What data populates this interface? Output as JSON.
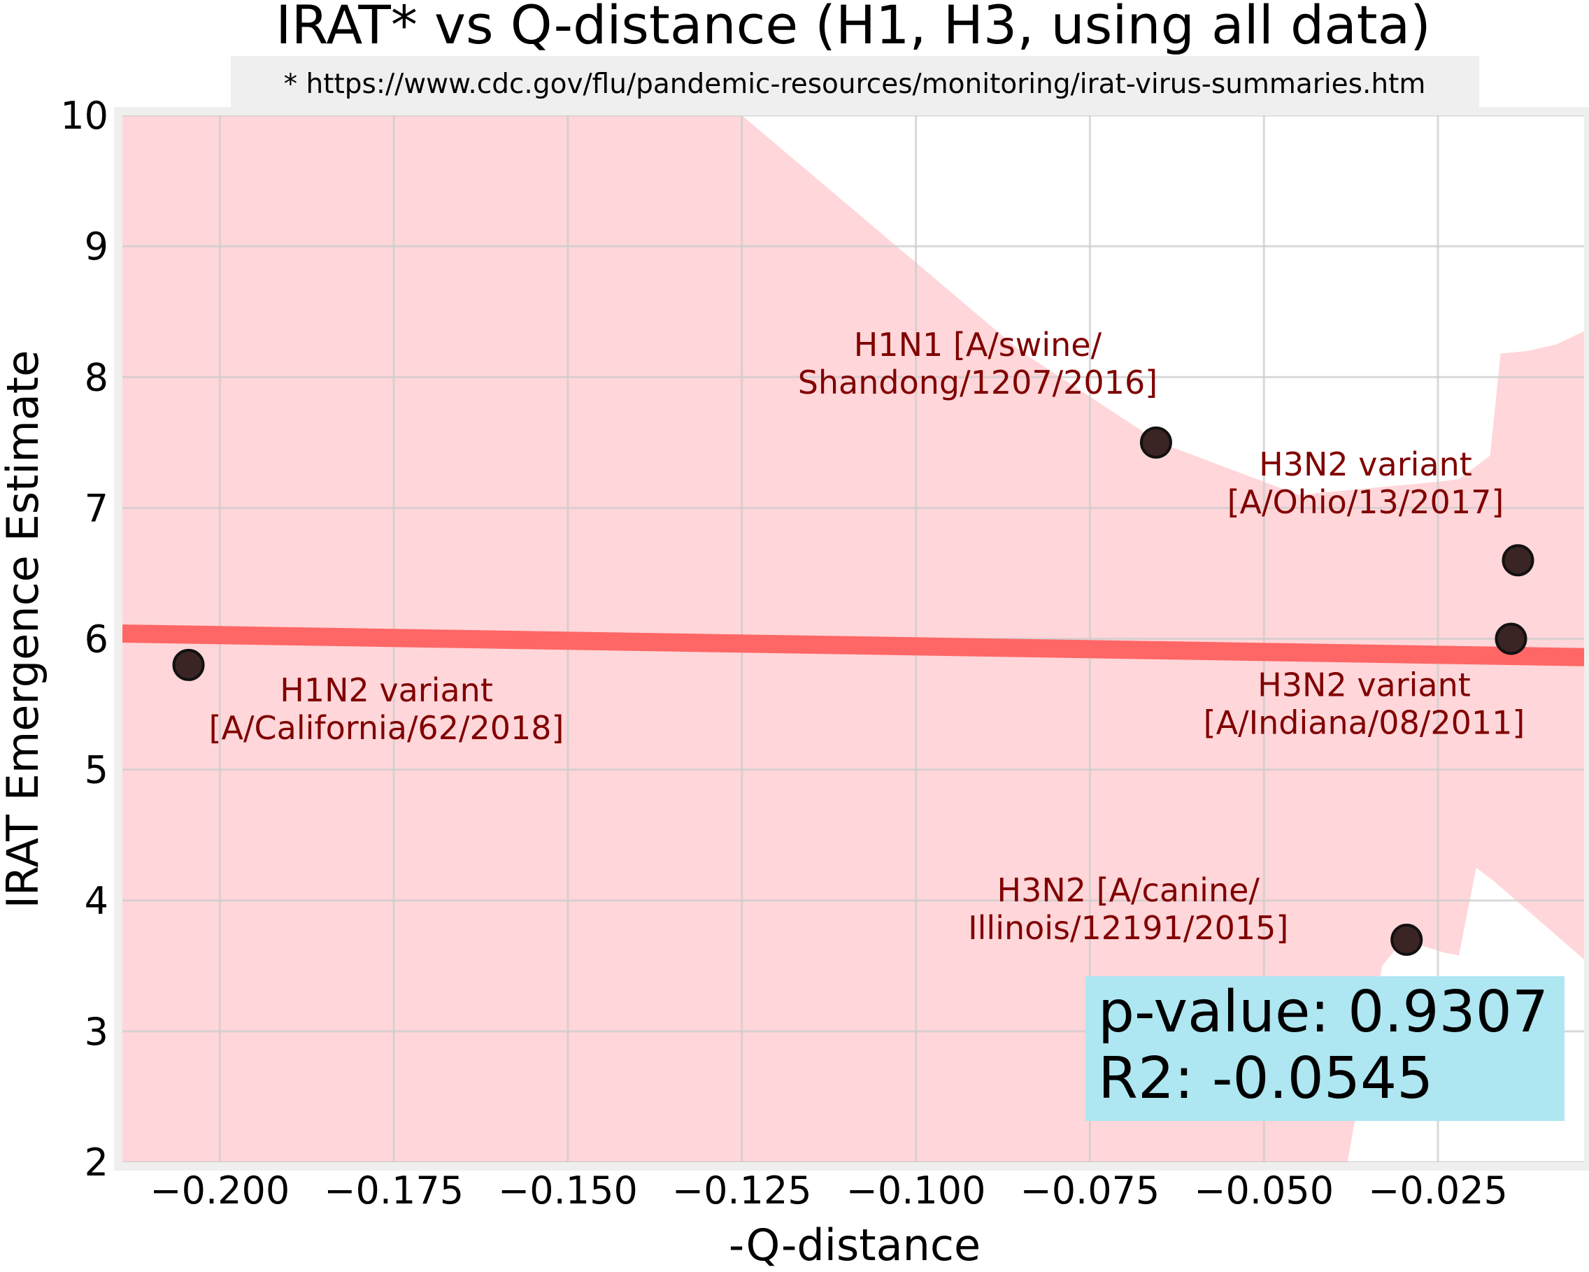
{
  "chart_data": {
    "type": "scatter",
    "title": "IRAT* vs Q-distance (H1, H3, using all data)",
    "subtitle": "* https://www.cdc.gov/flu/pandemic-resources/monitoring/irat-virus-summaries.htm",
    "xlabel": "-Q-distance",
    "ylabel": "IRAT Emergence Estimate",
    "xlim": [
      -0.214,
      -0.004
    ],
    "ylim": [
      2,
      10
    ],
    "xticks": [
      -0.2,
      -0.175,
      -0.15,
      -0.125,
      -0.1,
      -0.075,
      -0.05,
      -0.025
    ],
    "xtick_labels": [
      "−0.200",
      "−0.175",
      "−0.150",
      "−0.125",
      "−0.100",
      "−0.075",
      "−0.050",
      "−0.025"
    ],
    "yticks": [
      2,
      3,
      4,
      5,
      6,
      7,
      8,
      9,
      10
    ],
    "ytick_labels": [
      "2",
      "3",
      "4",
      "5",
      "6",
      "7",
      "8",
      "9",
      "10"
    ],
    "grid": true,
    "points": [
      {
        "x": -0.2045,
        "y": 5.8,
        "label": [
          "H1N2 variant",
          "[A/California/62/2018]"
        ]
      },
      {
        "x": -0.0655,
        "y": 7.5,
        "label": [
          "H1N1 [A/swine/",
          "Shandong/1207/2016]"
        ]
      },
      {
        "x": -0.0135,
        "y": 6.6,
        "label": [
          "H3N2 variant",
          "[A/Ohio/13/2017]"
        ]
      },
      {
        "x": -0.0145,
        "y": 6.0,
        "label": [
          "H3N2 variant",
          "[A/Indiana/08/2011]"
        ]
      },
      {
        "x": -0.0295,
        "y": 3.7,
        "label": [
          "H3N2 [A/canine/",
          "Illinois/12191/2015]"
        ]
      }
    ],
    "regression_line": {
      "x": [
        -0.214,
        -0.004
      ],
      "y": [
        6.04,
        5.86
      ]
    },
    "confidence_band": {
      "upper": [
        [
          -0.214,
          10.0
        ],
        [
          -0.125,
          10.0
        ],
        [
          -0.085,
          8.2
        ],
        [
          -0.065,
          7.5
        ],
        [
          -0.045,
          7.1
        ],
        [
          -0.025,
          7.2
        ],
        [
          -0.022,
          7.22
        ],
        [
          -0.02,
          7.3
        ],
        [
          -0.0175,
          7.4
        ],
        [
          -0.016,
          8.18
        ],
        [
          -0.012,
          8.2
        ],
        [
          -0.008,
          8.25
        ],
        [
          -0.006,
          8.3
        ],
        [
          -0.004,
          8.35
        ]
      ],
      "lower": [
        [
          -0.214,
          2.0
        ],
        [
          -0.038,
          2.0
        ],
        [
          -0.033,
          3.5
        ],
        [
          -0.03,
          3.7
        ],
        [
          -0.024,
          3.6
        ],
        [
          -0.022,
          3.58
        ],
        [
          -0.0195,
          4.25
        ],
        [
          -0.017,
          4.15
        ],
        [
          -0.004,
          3.55
        ]
      ],
      "color": "#ffd6d9"
    },
    "stats": {
      "p_value": "p-value: 0.9307",
      "r2": "R2: -0.0545"
    },
    "colors": {
      "point": "#3b2424",
      "line": "#ff6666",
      "annotation": "#800000",
      "stats_box": "#aee6f1",
      "grid": "#cccccc",
      "frame": "#efefef"
    }
  }
}
